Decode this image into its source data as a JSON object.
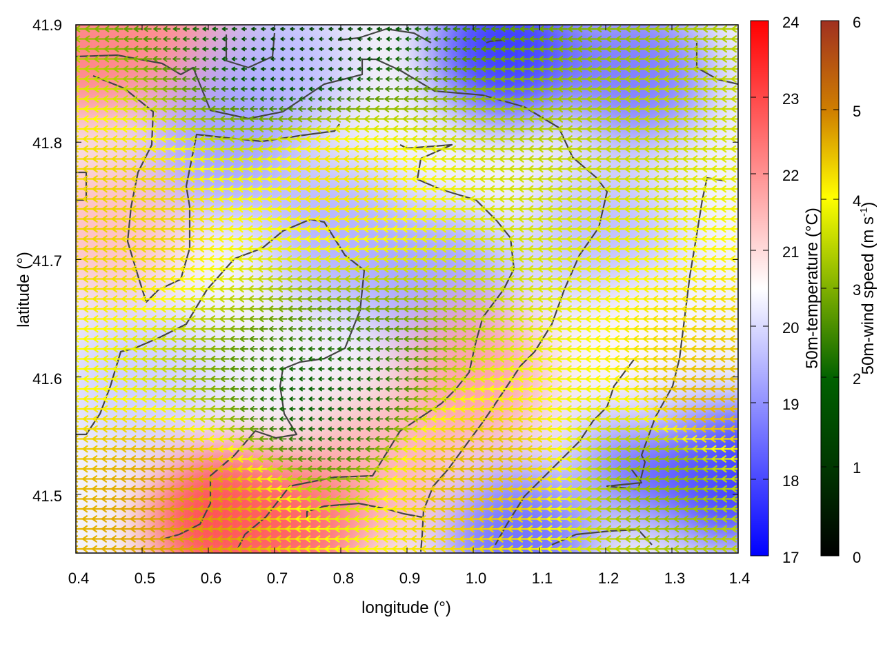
{
  "chart_data": {
    "type": "heatmap",
    "title": "",
    "xlabel": "longitude (°)",
    "ylabel": "latitude (°)",
    "xlim": [
      0.4,
      1.4
    ],
    "ylim": [
      41.45,
      41.9
    ],
    "x_ticks": [
      "0.4",
      "0.5",
      "0.6",
      "0.7",
      "0.8",
      "0.9",
      "1.0",
      "1.1",
      "1.2",
      "1.3",
      "1.4"
    ],
    "x_tick_values": [
      0.4,
      0.5,
      0.6,
      0.7,
      0.8,
      0.9,
      1.0,
      1.1,
      1.2,
      1.3,
      1.4
    ],
    "y_ticks": [
      "41.5",
      "41.6",
      "41.7",
      "41.8",
      "41.9"
    ],
    "y_tick_values": [
      41.5,
      41.6,
      41.7,
      41.8,
      41.9
    ],
    "temperature_colorbar": {
      "label": "50m-temperature (°C)",
      "range": [
        17,
        24
      ],
      "ticks": [
        "17",
        "18",
        "19",
        "20",
        "21",
        "22",
        "23",
        "24"
      ],
      "tick_values": [
        17,
        18,
        19,
        20,
        21,
        22,
        23,
        24
      ],
      "colors": [
        "#0000ff",
        "#ffffff",
        "#ff0000"
      ]
    },
    "wind_speed_colorbar": {
      "label": "50m-wind speed (m s-1)",
      "label_main": "50m-wind speed (m s",
      "label_sup": "-1",
      "label_close": ")",
      "range": [
        0,
        6
      ],
      "ticks": [
        "0",
        "1",
        "2",
        "3",
        "4",
        "5",
        "6"
      ],
      "tick_values": [
        0,
        1,
        2,
        3,
        4,
        5,
        6
      ],
      "colors": [
        "#000000",
        "#006000",
        "#80b000",
        "#ffff00",
        "#d08000",
        "#a03020"
      ]
    },
    "temperature_field": [
      {
        "lon": 0.42,
        "lat": 41.88,
        "value": 22.3
      },
      {
        "lon": 0.55,
        "lat": 41.89,
        "value": 22.1
      },
      {
        "lon": 0.7,
        "lat": 41.86,
        "value": 19.5
      },
      {
        "lon": 1.05,
        "lat": 41.88,
        "value": 17.6
      },
      {
        "lon": 1.25,
        "lat": 41.86,
        "value": 18.6
      },
      {
        "lon": 0.45,
        "lat": 41.73,
        "value": 21.4
      },
      {
        "lon": 0.62,
        "lat": 41.8,
        "value": 19.2
      },
      {
        "lon": 0.8,
        "lat": 41.72,
        "value": 19.4
      },
      {
        "lon": 0.95,
        "lat": 41.68,
        "value": 19.2
      },
      {
        "lon": 1.2,
        "lat": 41.72,
        "value": 19.6
      },
      {
        "lon": 1.0,
        "lat": 41.6,
        "value": 21.8
      },
      {
        "lon": 0.85,
        "lat": 41.52,
        "value": 21.6
      },
      {
        "lon": 0.62,
        "lat": 41.48,
        "value": 23.2
      },
      {
        "lon": 0.72,
        "lat": 41.47,
        "value": 22.7
      },
      {
        "lon": 1.38,
        "lat": 41.52,
        "value": 17.3
      },
      {
        "lon": 1.28,
        "lat": 41.54,
        "value": 18.3
      },
      {
        "lon": 1.25,
        "lat": 41.62,
        "value": 20.6
      },
      {
        "lon": 0.5,
        "lat": 41.6,
        "value": 19.8
      },
      {
        "lon": 1.07,
        "lat": 41.46,
        "value": 18.4
      }
    ],
    "wind_direction": "mostly toward the west",
    "wind_speed_field": [
      {
        "lon": 0.47,
        "lat": 41.74,
        "value": 4.0
      },
      {
        "lon": 0.8,
        "lat": 41.77,
        "value": 3.8
      },
      {
        "lon": 0.58,
        "lat": 41.49,
        "value": 4.5
      },
      {
        "lon": 1.0,
        "lat": 41.52,
        "value": 4.2
      },
      {
        "lon": 1.36,
        "lat": 41.57,
        "value": 4.3
      },
      {
        "lon": 1.3,
        "lat": 41.52,
        "value": 2.5
      },
      {
        "lon": 0.78,
        "lat": 41.58,
        "value": 1.2
      },
      {
        "lon": 0.75,
        "lat": 41.88,
        "value": 0.8
      }
    ]
  }
}
